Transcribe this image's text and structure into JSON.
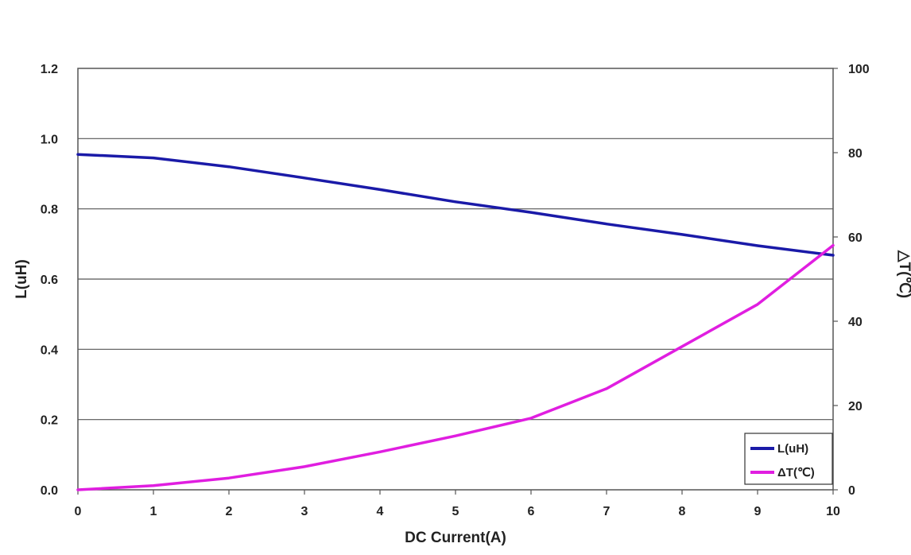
{
  "chart_data": {
    "type": "line",
    "xlabel": "DC Current(A)",
    "ylabel": "L(uH)",
    "y2label": "△T(℃)",
    "xlim": [
      0,
      10
    ],
    "ylim": [
      0,
      1.2
    ],
    "y2lim": [
      0,
      100
    ],
    "xticks": [
      "0",
      "1",
      "2",
      "3",
      "4",
      "5",
      "6",
      "7",
      "8",
      "9",
      "10"
    ],
    "yticks": [
      "0.0",
      "0.2",
      "0.4",
      "0.6",
      "0.8",
      "1.0",
      "1.2"
    ],
    "y2ticks": [
      "0",
      "20",
      "40",
      "60",
      "80",
      "100"
    ],
    "grid": "horizontal",
    "legend_position": "bottom-right",
    "series": [
      {
        "name": "L(uH)",
        "axis": "left",
        "color": "#1a1aa8",
        "x": [
          0,
          1,
          2,
          3,
          4,
          5,
          6,
          7,
          8,
          9,
          10
        ],
        "values": [
          0.955,
          0.945,
          0.92,
          0.888,
          0.855,
          0.82,
          0.79,
          0.757,
          0.727,
          0.695,
          0.668
        ]
      },
      {
        "name": "ΔT(℃)",
        "axis": "right",
        "color": "#e01ee0",
        "x": [
          0,
          1,
          2,
          3,
          4,
          5,
          6,
          7,
          8,
          9,
          10
        ],
        "values": [
          0,
          1,
          2.8,
          5.5,
          9,
          12.8,
          17,
          24,
          34,
          44,
          58
        ]
      }
    ]
  }
}
